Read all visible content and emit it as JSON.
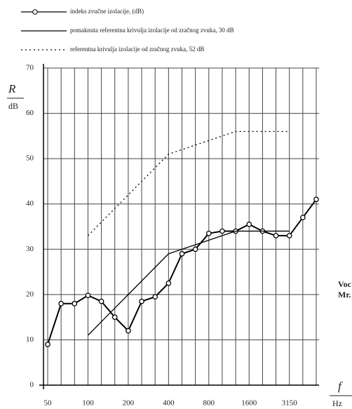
{
  "chart_data": {
    "type": "line",
    "y_label": "R",
    "y_unit": "dB",
    "x_label": "f",
    "x_unit": "Hz",
    "side_texts": [
      "Voc",
      "Mr."
    ],
    "categories": [
      "50",
      null,
      null,
      "100",
      null,
      null,
      "200",
      null,
      null,
      "400",
      null,
      null,
      "800",
      null,
      null,
      "1600",
      null,
      null,
      "3150",
      null,
      null
    ],
    "series": [
      {
        "name": "indeks zvučne izolacije, (dB)",
        "color": "#000000",
        "style": "solid-marker",
        "values": [
          9,
          18,
          18,
          19.8,
          18.5,
          15,
          12,
          18.5,
          19.5,
          22.5,
          29,
          30,
          33.5,
          34,
          34,
          35.5,
          34,
          33,
          33,
          37,
          41
        ]
      },
      {
        "name": "pomaknuta referentna krivulja izolacije od zračnog zvuka, 30 dB",
        "color": "#000000",
        "style": "solid",
        "values": [
          null,
          null,
          null,
          11,
          14,
          17,
          20,
          23,
          26,
          29,
          30,
          31,
          32,
          33,
          34,
          34,
          34,
          34,
          34,
          null,
          null
        ]
      },
      {
        "name": "referentna krivulja izolacije od zračnog zvuka, 52 dB",
        "color": "#000000",
        "style": "dotted",
        "values": [
          null,
          null,
          null,
          33,
          36,
          39,
          42,
          45,
          48,
          51,
          52,
          53,
          54,
          55,
          56,
          56,
          56,
          56,
          56,
          null,
          null
        ]
      }
    ],
    "ylim": [
      0,
      70
    ],
    "yticks": [
      0,
      10,
      20,
      30,
      40,
      50,
      60,
      70
    ],
    "grid": true
  }
}
